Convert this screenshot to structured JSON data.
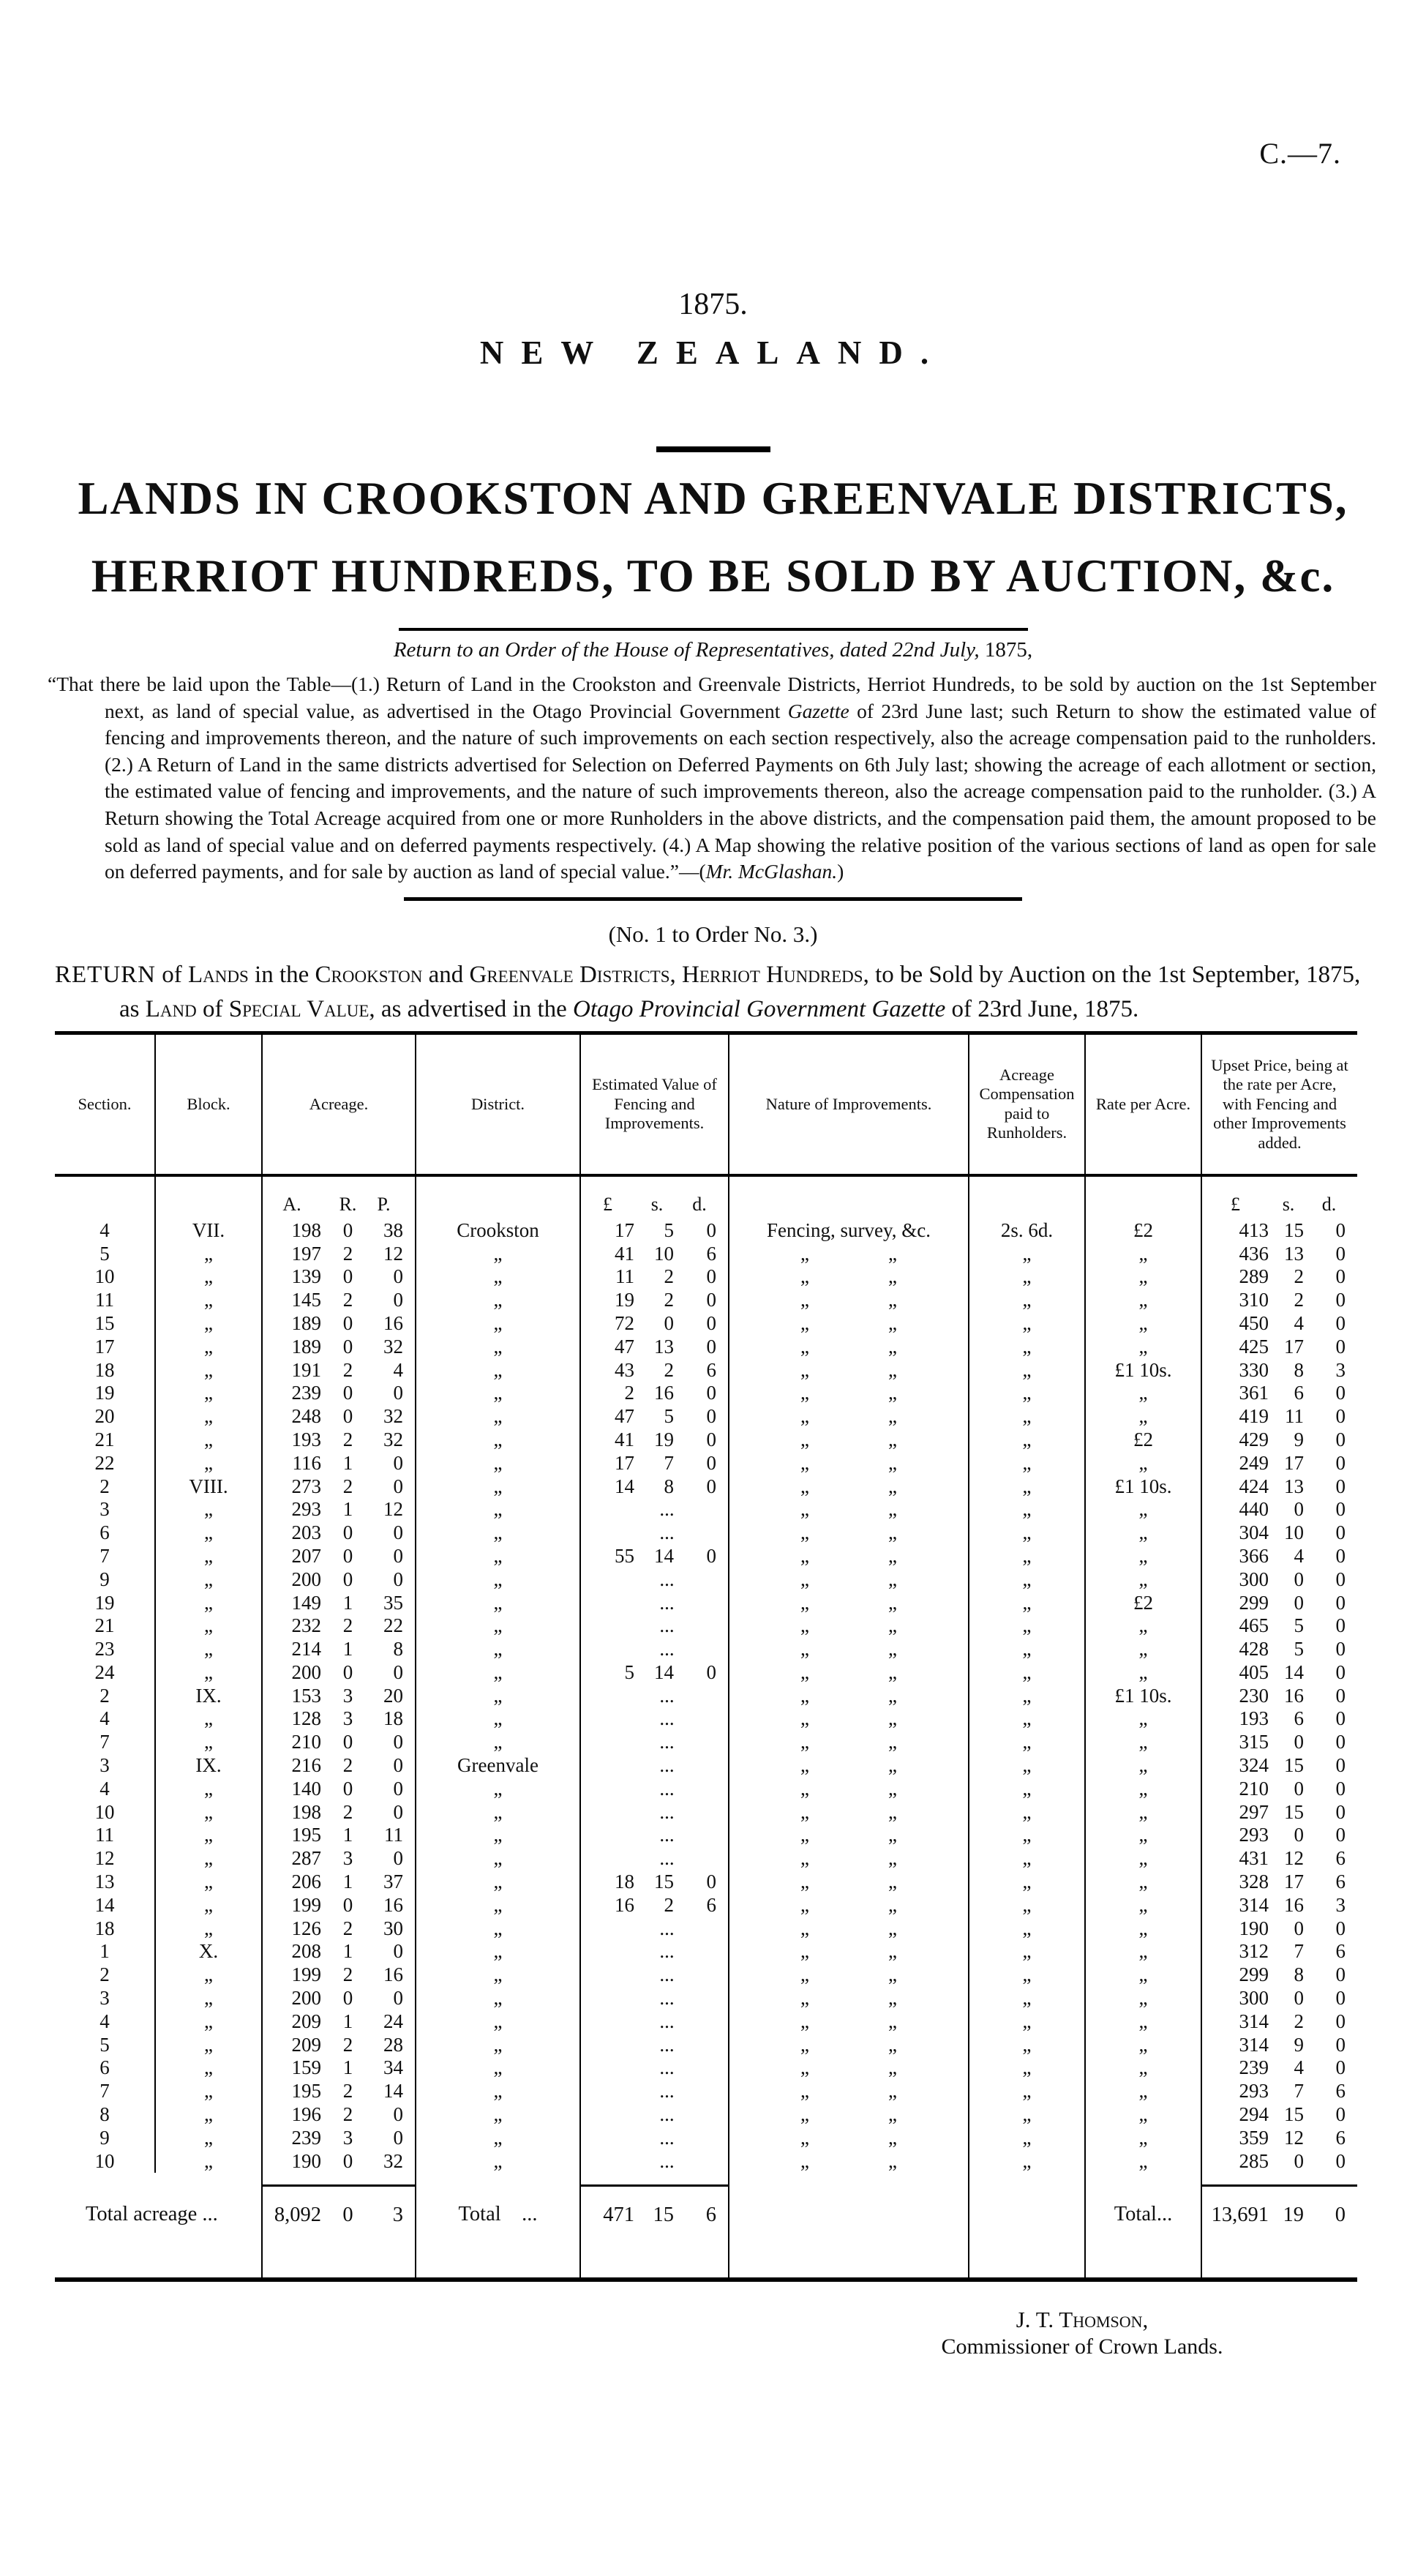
{
  "page": {
    "doc_code": "C.—7.",
    "year": "1875.",
    "country": "NEW ZEALAND.",
    "title_line1": "LANDS IN CROOKSTON AND GREENVALE DISTRICTS,",
    "title_line2": "HERRIOT HUNDREDS, TO BE SOLD BY AUCTION, &c.",
    "order_italic": "Return to an Order of the House of Representatives, dated 22nd July, ",
    "order_year": "1875,",
    "para": {
      "s1": "“That there be laid upon the Table—(1.) Return of Land in the Crookston and Greenvale Districts, Herriot Hundreds, to be sold by auction on the 1st September next, as land of special value, as advertised in the Otago Provincial Government ",
      "gazette": "Gazette",
      "s3": " of 23rd June last; such Return to show the estimated value of fencing and improvements thereon, and the nature of such improvements on each section respectively, also the acreage compensation paid to the runholders.  (2.) A Return of Land in the same districts advertised for Selection on Deferred Payments on 6th July last; showing the acreage of each allotment or section, the estimated value of fencing and improvements, and the nature of such improvements thereon, also the acreage compensation paid to the runholder.  (3.) A Return showing the Total Acreage acquired from one or more Runholders in the above districts, and the compensation paid them, the amount proposed to be sold as land of special value and on deferred payments respectively.  (4.) A Map showing the relative position of the various sections of land as open for sale on deferred payments, and for sale by auction as land of special value.”—(",
      "mr": "Mr. McGlashan.",
      "close": ")"
    },
    "order_no": "(No. 1 to Order No. 3.)",
    "rh": {
      "s1": "Return",
      "s2": " of ",
      "s3": "Lands",
      "s4": " in the ",
      "s5": "Crookston",
      "s6": " and ",
      "s7": "Greenvale Districts,",
      "s8": " ",
      "s9": "Herriot Hundreds,",
      "s10": " to be Sold by Auction on the 1st September, 1875, as ",
      "s11": "Land",
      "s12": " of ",
      "s13": "Special Value,",
      "s14": " as advertised in the ",
      "s15": "Otago Provincial Government Gazette",
      "s16": " of 23rd June, 1875."
    },
    "signature_name": "J. T. Thomson,",
    "signature_title": "Commissioner of Crown Lands."
  },
  "table": {
    "headers": [
      "Section.",
      "Block.",
      "Acreage.",
      "District.",
      "Estimated Value of Fencing and Improvements.",
      "Nature of Improvements.",
      "Acreage Compensa­tion paid to Runholders.",
      "Rate per Acre.",
      "Upset Price, being at the rate per Acre, with Fencing and other Improve­ments added."
    ],
    "units": {
      "a": "A.",
      "r": "R.",
      "p": "P.",
      "pound1": "£",
      "s1": "s.",
      "d1": "d.",
      "pound2": "£",
      "s2": "s.",
      "d2": "d."
    },
    "rows": [
      [
        "4",
        "VII.",
        "198",
        "0",
        "38",
        "Crookston",
        "17",
        "5",
        "0",
        "Fencing, survey, &c.",
        "2s. 6d.",
        "£2",
        "413",
        "15",
        "0"
      ],
      [
        "5",
        "„",
        "197",
        "2",
        "12",
        "„",
        "41",
        "10",
        "6",
        "„    „",
        "„",
        "„",
        "436",
        "13",
        "0"
      ],
      [
        "10",
        "„",
        "139",
        "0",
        "0",
        "„",
        "11",
        "2",
        "0",
        "„    „",
        "„",
        "„",
        "289",
        "2",
        "0"
      ],
      [
        "11",
        "„",
        "145",
        "2",
        "0",
        "„",
        "19",
        "2",
        "0",
        "„    „",
        "„",
        "„",
        "310",
        "2",
        "0"
      ],
      [
        "15",
        "„",
        "189",
        "0",
        "16",
        "„",
        "72",
        "0",
        "0",
        "„    „",
        "„",
        "„",
        "450",
        "4",
        "0"
      ],
      [
        "17",
        "„",
        "189",
        "0",
        "32",
        "„",
        "47",
        "13",
        "0",
        "„    „",
        "„",
        "„",
        "425",
        "17",
        "0"
      ],
      [
        "18",
        "„",
        "191",
        "2",
        "4",
        "„",
        "43",
        "2",
        "6",
        "„    „",
        "„",
        "£1 10s.",
        "330",
        "8",
        "3"
      ],
      [
        "19",
        "„",
        "239",
        "0",
        "0",
        "„",
        "2",
        "16",
        "0",
        "„    „",
        "„",
        "„",
        "361",
        "6",
        "0"
      ],
      [
        "20",
        "„",
        "248",
        "0",
        "32",
        "„",
        "47",
        "5",
        "0",
        "„    „",
        "„",
        "„",
        "419",
        "11",
        "0"
      ],
      [
        "21",
        "„",
        "193",
        "2",
        "32",
        "„",
        "41",
        "19",
        "0",
        "„    „",
        "„",
        "£2",
        "429",
        "9",
        "0"
      ],
      [
        "22",
        "„",
        "116",
        "1",
        "0",
        "„",
        "17",
        "7",
        "0",
        "„    „",
        "„",
        "„",
        "249",
        "17",
        "0"
      ],
      [
        "2",
        "VIII.",
        "273",
        "2",
        "0",
        "„",
        "14",
        "8",
        "0",
        "„    „",
        "„",
        "£1 10s.",
        "424",
        "13",
        "0"
      ],
      [
        "3",
        "„",
        "293",
        "1",
        "12",
        "„",
        "...",
        "",
        "",
        "„    „",
        "„",
        "„",
        "440",
        "0",
        "0"
      ],
      [
        "6",
        "„",
        "203",
        "0",
        "0",
        "„",
        "...",
        "",
        "",
        "„    „",
        "„",
        "„",
        "304",
        "10",
        "0"
      ],
      [
        "7",
        "„",
        "207",
        "0",
        "0",
        "„",
        "55",
        "14",
        "0",
        "„    „",
        "„",
        "„",
        "366",
        "4",
        "0"
      ],
      [
        "9",
        "„",
        "200",
        "0",
        "0",
        "„",
        "...",
        "",
        "",
        "„    „",
        "„",
        "„",
        "300",
        "0",
        "0"
      ],
      [
        "19",
        "„",
        "149",
        "1",
        "35",
        "„",
        "...",
        "",
        "",
        "„    „",
        "„",
        "£2",
        "299",
        "0",
        "0"
      ],
      [
        "21",
        "„",
        "232",
        "2",
        "22",
        "„",
        "...",
        "",
        "",
        "„    „",
        "„",
        "„",
        "465",
        "5",
        "0"
      ],
      [
        "23",
        "„",
        "214",
        "1",
        "8",
        "„",
        "...",
        "",
        "",
        "„    „",
        "„",
        "„",
        "428",
        "5",
        "0"
      ],
      [
        "24",
        "„",
        "200",
        "0",
        "0",
        "„",
        "5",
        "14",
        "0",
        "„    „",
        "„",
        "„",
        "405",
        "14",
        "0"
      ],
      [
        "2",
        "IX.",
        "153",
        "3",
        "20",
        "„",
        "...",
        "",
        "",
        "„    „",
        "„",
        "£1 10s.",
        "230",
        "16",
        "0"
      ],
      [
        "4",
        "„",
        "128",
        "3",
        "18",
        "„",
        "...",
        "",
        "",
        "„    „",
        "„",
        "„",
        "193",
        "6",
        "0"
      ],
      [
        "7",
        "„",
        "210",
        "0",
        "0",
        "„",
        "...",
        "",
        "",
        "„    „",
        "„",
        "„",
        "315",
        "0",
        "0"
      ],
      [
        "3",
        "IX.",
        "216",
        "2",
        "0",
        "Greenvale",
        "...",
        "",
        "",
        "„    „",
        "„",
        "„",
        "324",
        "15",
        "0"
      ],
      [
        "4",
        "„",
        "140",
        "0",
        "0",
        "„",
        "...",
        "",
        "",
        "„    „",
        "„",
        "„",
        "210",
        "0",
        "0"
      ],
      [
        "10",
        "„",
        "198",
        "2",
        "0",
        "„",
        "...",
        "",
        "",
        "„    „",
        "„",
        "„",
        "297",
        "15",
        "0"
      ],
      [
        "11",
        "„",
        "195",
        "1",
        "11",
        "„",
        "...",
        "",
        "",
        "„    „",
        "„",
        "„",
        "293",
        "0",
        "0"
      ],
      [
        "12",
        "„",
        "287",
        "3",
        "0",
        "„",
        "...",
        "",
        "",
        "„    „",
        "„",
        "„",
        "431",
        "12",
        "6"
      ],
      [
        "13",
        "„",
        "206",
        "1",
        "37",
        "„",
        "18",
        "15",
        "0",
        "„    „",
        "„",
        "„",
        "328",
        "17",
        "6"
      ],
      [
        "14",
        "„",
        "199",
        "0",
        "16",
        "„",
        "16",
        "2",
        "6",
        "„    „",
        "„",
        "„",
        "314",
        "16",
        "3"
      ],
      [
        "18",
        "„",
        "126",
        "2",
        "30",
        "„",
        "...",
        "",
        "",
        "„    „",
        "„",
        "„",
        "190",
        "0",
        "0"
      ],
      [
        "1",
        "X.",
        "208",
        "1",
        "0",
        "„",
        "...",
        "",
        "",
        "„    „",
        "„",
        "„",
        "312",
        "7",
        "6"
      ],
      [
        "2",
        "„",
        "199",
        "2",
        "16",
        "„",
        "...",
        "",
        "",
        "„    „",
        "„",
        "„",
        "299",
        "8",
        "0"
      ],
      [
        "3",
        "„",
        "200",
        "0",
        "0",
        "„",
        "...",
        "",
        "",
        "„    „",
        "„",
        "„",
        "300",
        "0",
        "0"
      ],
      [
        "4",
        "„",
        "209",
        "1",
        "24",
        "„",
        "...",
        "",
        "",
        "„    „",
        "„",
        "„",
        "314",
        "2",
        "0"
      ],
      [
        "5",
        "„",
        "209",
        "2",
        "28",
        "„",
        "...",
        "",
        "",
        "„    „",
        "„",
        "„",
        "314",
        "9",
        "0"
      ],
      [
        "6",
        "„",
        "159",
        "1",
        "34",
        "„",
        "...",
        "",
        "",
        "„    „",
        "„",
        "„",
        "239",
        "4",
        "0"
      ],
      [
        "7",
        "„",
        "195",
        "2",
        "14",
        "„",
        "...",
        "",
        "",
        "„    „",
        "„",
        "„",
        "293",
        "7",
        "6"
      ],
      [
        "8",
        "„",
        "196",
        "2",
        "0",
        "„",
        "...",
        "",
        "",
        "„    „",
        "„",
        "„",
        "294",
        "15",
        "0"
      ],
      [
        "9",
        "„",
        "239",
        "3",
        "0",
        "„",
        "...",
        "",
        "",
        "„    „",
        "„",
        "„",
        "359",
        "12",
        "6"
      ],
      [
        "10",
        "„",
        "190",
        "0",
        "32",
        "„",
        "...",
        "",
        "",
        "„    „",
        "„",
        "„",
        "285",
        "0",
        "0"
      ]
    ],
    "totals": {
      "acreage_label": "Total acreage ...",
      "acreage_a": "8,092",
      "acreage_r": "0",
      "acreage_p": "3",
      "est_label": "Total  ...",
      "est_l": "471",
      "est_s": "15",
      "est_d": "6",
      "upset_label": "Total...",
      "upset_l": "13,691",
      "upset_s": "19",
      "upset_d": "0"
    }
  }
}
